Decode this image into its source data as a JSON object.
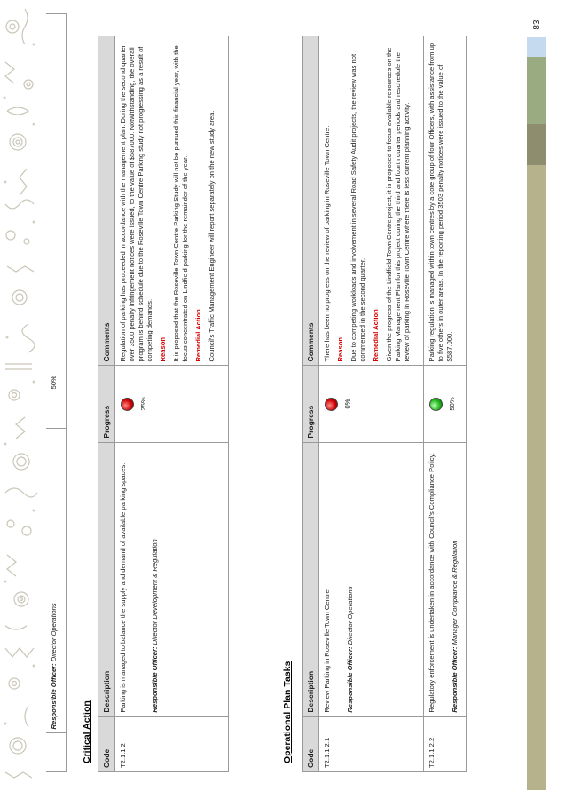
{
  "page_number": "83",
  "colors": {
    "bar_blue": "#c5d9ef",
    "bar_green": "#9aab82",
    "bar_olive_dark": "#8e8d6d",
    "bar_olive": "#b6b38c",
    "indicator_red": "#d00000",
    "indicator_green": "#1fb51a",
    "heading_red": "#d40000"
  },
  "top_fragment": {
    "responsible_label": "Responsible Officer:",
    "responsible_value": "Director Operations",
    "progress": "50%"
  },
  "critical_action": {
    "title": "Critical Action",
    "headers": {
      "code": "Code",
      "description": "Description",
      "progress": "Progress",
      "comments": "Comments"
    },
    "rows": [
      {
        "code": "T2.1.1.2",
        "description": "Parking is managed to balance the supply and demand of available parking spaces.",
        "responsible_label": "Responsible Officer:",
        "responsible_value": "Director Development & Regulation",
        "status": "red",
        "progress": "25%",
        "comment_1": "Regulation of parking has proceeded in accordance with the management plan. During the second quarter over 3500 penalty infringement notices were issued, to the value of $587000. Notwithstanding, the overall program is behind schedule due to the Roseville Town Centre Parking study not progressing as a result of competing demands.",
        "reason_heading": "Reason",
        "comment_2": "It is proposed that the Roseville Town Centre Parking Study will not be pursued this financial year, with the focus concentrated on Lindfield parking for the remainder of the year.",
        "remedial_heading": "Remedial Action",
        "comment_3": "Council's Traffic Management Engineer will report separately on the new study area."
      }
    ]
  },
  "operational_tasks": {
    "title": "Operational Plan Tasks",
    "headers": {
      "code": "Code",
      "description": "Description",
      "progress": "Progress",
      "comments": "Comments"
    },
    "rows": [
      {
        "code": "T2.1.1.2.1",
        "description": "Review Parking in Roseville Town Centre.",
        "responsible_label": "Responsible Officer:",
        "responsible_value": "Director Operations",
        "status": "red",
        "progress": "0%",
        "comment_1": "There has been no progress on the review of parking in Roseville Town Centre.",
        "reason_heading": "Reason",
        "comment_2": "Due to competing workloads and involvement in several Road Safety Audit projects, the review was not commenced in the second quarter.",
        "remedial_heading": "Remedial Action",
        "comment_3": "Given the progress of the Lindfield Town Centre project, it is proposed to focus available resources on the Parking Management Plan for this project during the third and fourth quarter periods and reschedule the review of parking in Roseville Town Centre where there is less current planning activity."
      },
      {
        "code": "T2.1.1.2.2",
        "description": "Regulatory enforcement is undertaken in accordance with Council's Compliance Policy.",
        "responsible_label": "Responsible Officer:",
        "responsible_value": "Manager Compliance & Regulation",
        "status": "green",
        "progress": "50%",
        "comment_1": "Parking regulation is managed within town centres by a core group of four Officers, with assistance from up to five others in outer areas. In the reporting period 3503 penalty notices were issued to the value of $587,000."
      }
    ]
  }
}
